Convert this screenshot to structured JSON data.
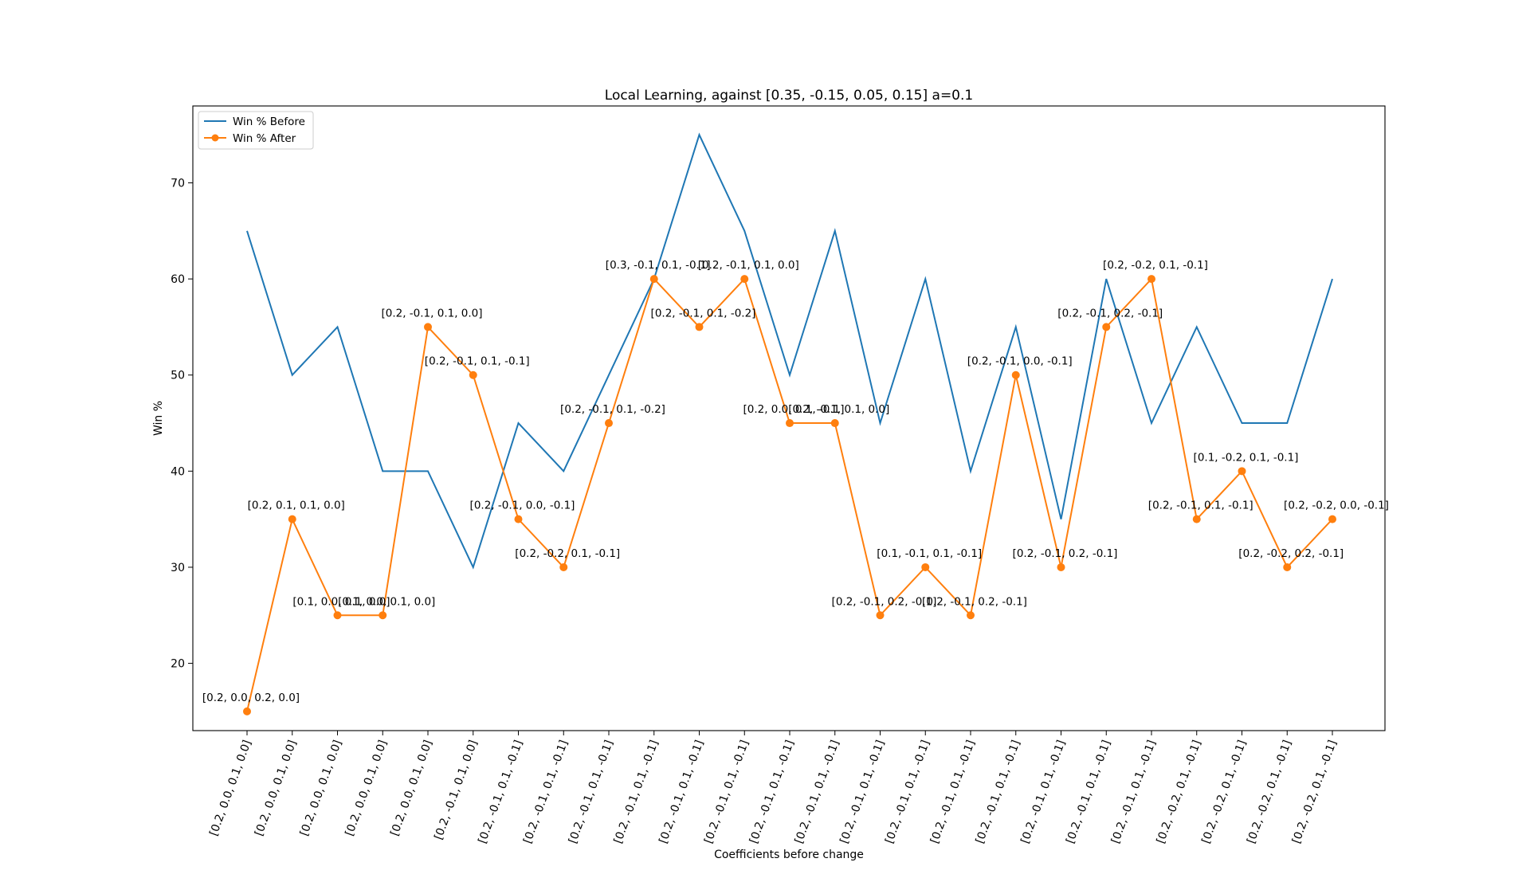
{
  "chart_data": {
    "type": "line",
    "title": "Local Learning, against [0.35, -0.15, 0.05, 0.15] a=0.1",
    "xlabel": "Coefficients before change",
    "ylabel": "Win %",
    "ylim": [
      13,
      78
    ],
    "yticks": [
      20,
      30,
      40,
      50,
      60,
      70
    ],
    "grid": false,
    "legend_position": "top-left",
    "categories": [
      "[0.2, 0.0, 0.1, 0.0]",
      "[0.2, 0.0, 0.1, 0.0]",
      "[0.2, 0.0, 0.1, 0.0]",
      "[0.2, 0.0, 0.1, 0.0]",
      "[0.2, 0.0, 0.1, 0.0]",
      "[0.2, -0.1, 0.1, 0.0]",
      "[0.2, -0.1, 0.1, -0.1]",
      "[0.2, -0.1, 0.1, -0.1]",
      "[0.2, -0.1, 0.1, -0.1]",
      "[0.2, -0.1, 0.1, -0.1]",
      "[0.2, -0.1, 0.1, -0.1]",
      "[0.2, -0.1, 0.1, -0.1]",
      "[0.2, -0.1, 0.1, -0.1]",
      "[0.2, -0.1, 0.1, -0.1]",
      "[0.2, -0.1, 0.1, -0.1]",
      "[0.2, -0.1, 0.1, -0.1]",
      "[0.2, -0.1, 0.1, -0.1]",
      "[0.2, -0.1, 0.1, -0.1]",
      "[0.2, -0.1, 0.1, -0.1]",
      "[0.2, -0.1, 0.1, -0.1]",
      "[0.2, -0.1, 0.1, -0.1]",
      "[0.2, -0.2, 0.1, -0.1]",
      "[0.2, -0.2, 0.1, -0.1]",
      "[0.2, -0.2, 0.1, -0.1]",
      "[0.2, -0.2, 0.1, -0.1]"
    ],
    "series": [
      {
        "name": "Win % Before",
        "color": "#1f77b4",
        "marker": false,
        "values": [
          65,
          50,
          55,
          40,
          40,
          30,
          45,
          40,
          50,
          60,
          75,
          65,
          50,
          65,
          45,
          60,
          40,
          55,
          35,
          60,
          45,
          55,
          45,
          45,
          60
        ]
      },
      {
        "name": "Win % After",
        "color": "#ff7f0e",
        "marker": true,
        "values": [
          15,
          35,
          25,
          25,
          55,
          50,
          35,
          30,
          45,
          60,
          55,
          60,
          45,
          45,
          25,
          30,
          25,
          50,
          30,
          55,
          60,
          35,
          40,
          30,
          35
        ],
        "point_labels": [
          "[0.2, 0.0, 0.2, 0.0]",
          "[0.2, 0.1, 0.1, 0.0]",
          "[0.1, 0.0, 0.1, 0.0]",
          "[0.1, 0.0, 0.1, 0.0]",
          "[0.2, -0.1, 0.1, 0.0]",
          "[0.2, -0.1, 0.1, -0.1]",
          "[0.2, -0.1, 0.0, -0.1]",
          "[0.2, -0.2, 0.1, -0.1]",
          "[0.2, -0.1, 0.1, -0.2]",
          "[0.3, -0.1, 0.1, -0.1]",
          "[0.2, -0.1, 0.1, -0.2]",
          "[0.2, -0.1, 0.1, 0.0]",
          "[0.2, 0.0, 0.1, -0.1]",
          "[0.2, -0.1, 0.1, 0.0]",
          "[0.2, -0.1, 0.2, -0.1]",
          "[0.1, -0.1, 0.1, -0.1]",
          "[0.2, -0.1, 0.2, -0.1]",
          "[0.2, -0.1, 0.0, -0.1]",
          "[0.2, -0.1, 0.2, -0.1]",
          "[0.2, -0.1, 0.2, -0.1]",
          "[0.2, -0.2, 0.1, -0.1]",
          "[0.2, -0.1, 0.1, -0.1]",
          "[0.1, -0.2, 0.1, -0.1]",
          "[0.2, -0.2, 0.2, -0.1]",
          "[0.2, -0.2, 0.0, -0.1]"
        ]
      }
    ]
  }
}
